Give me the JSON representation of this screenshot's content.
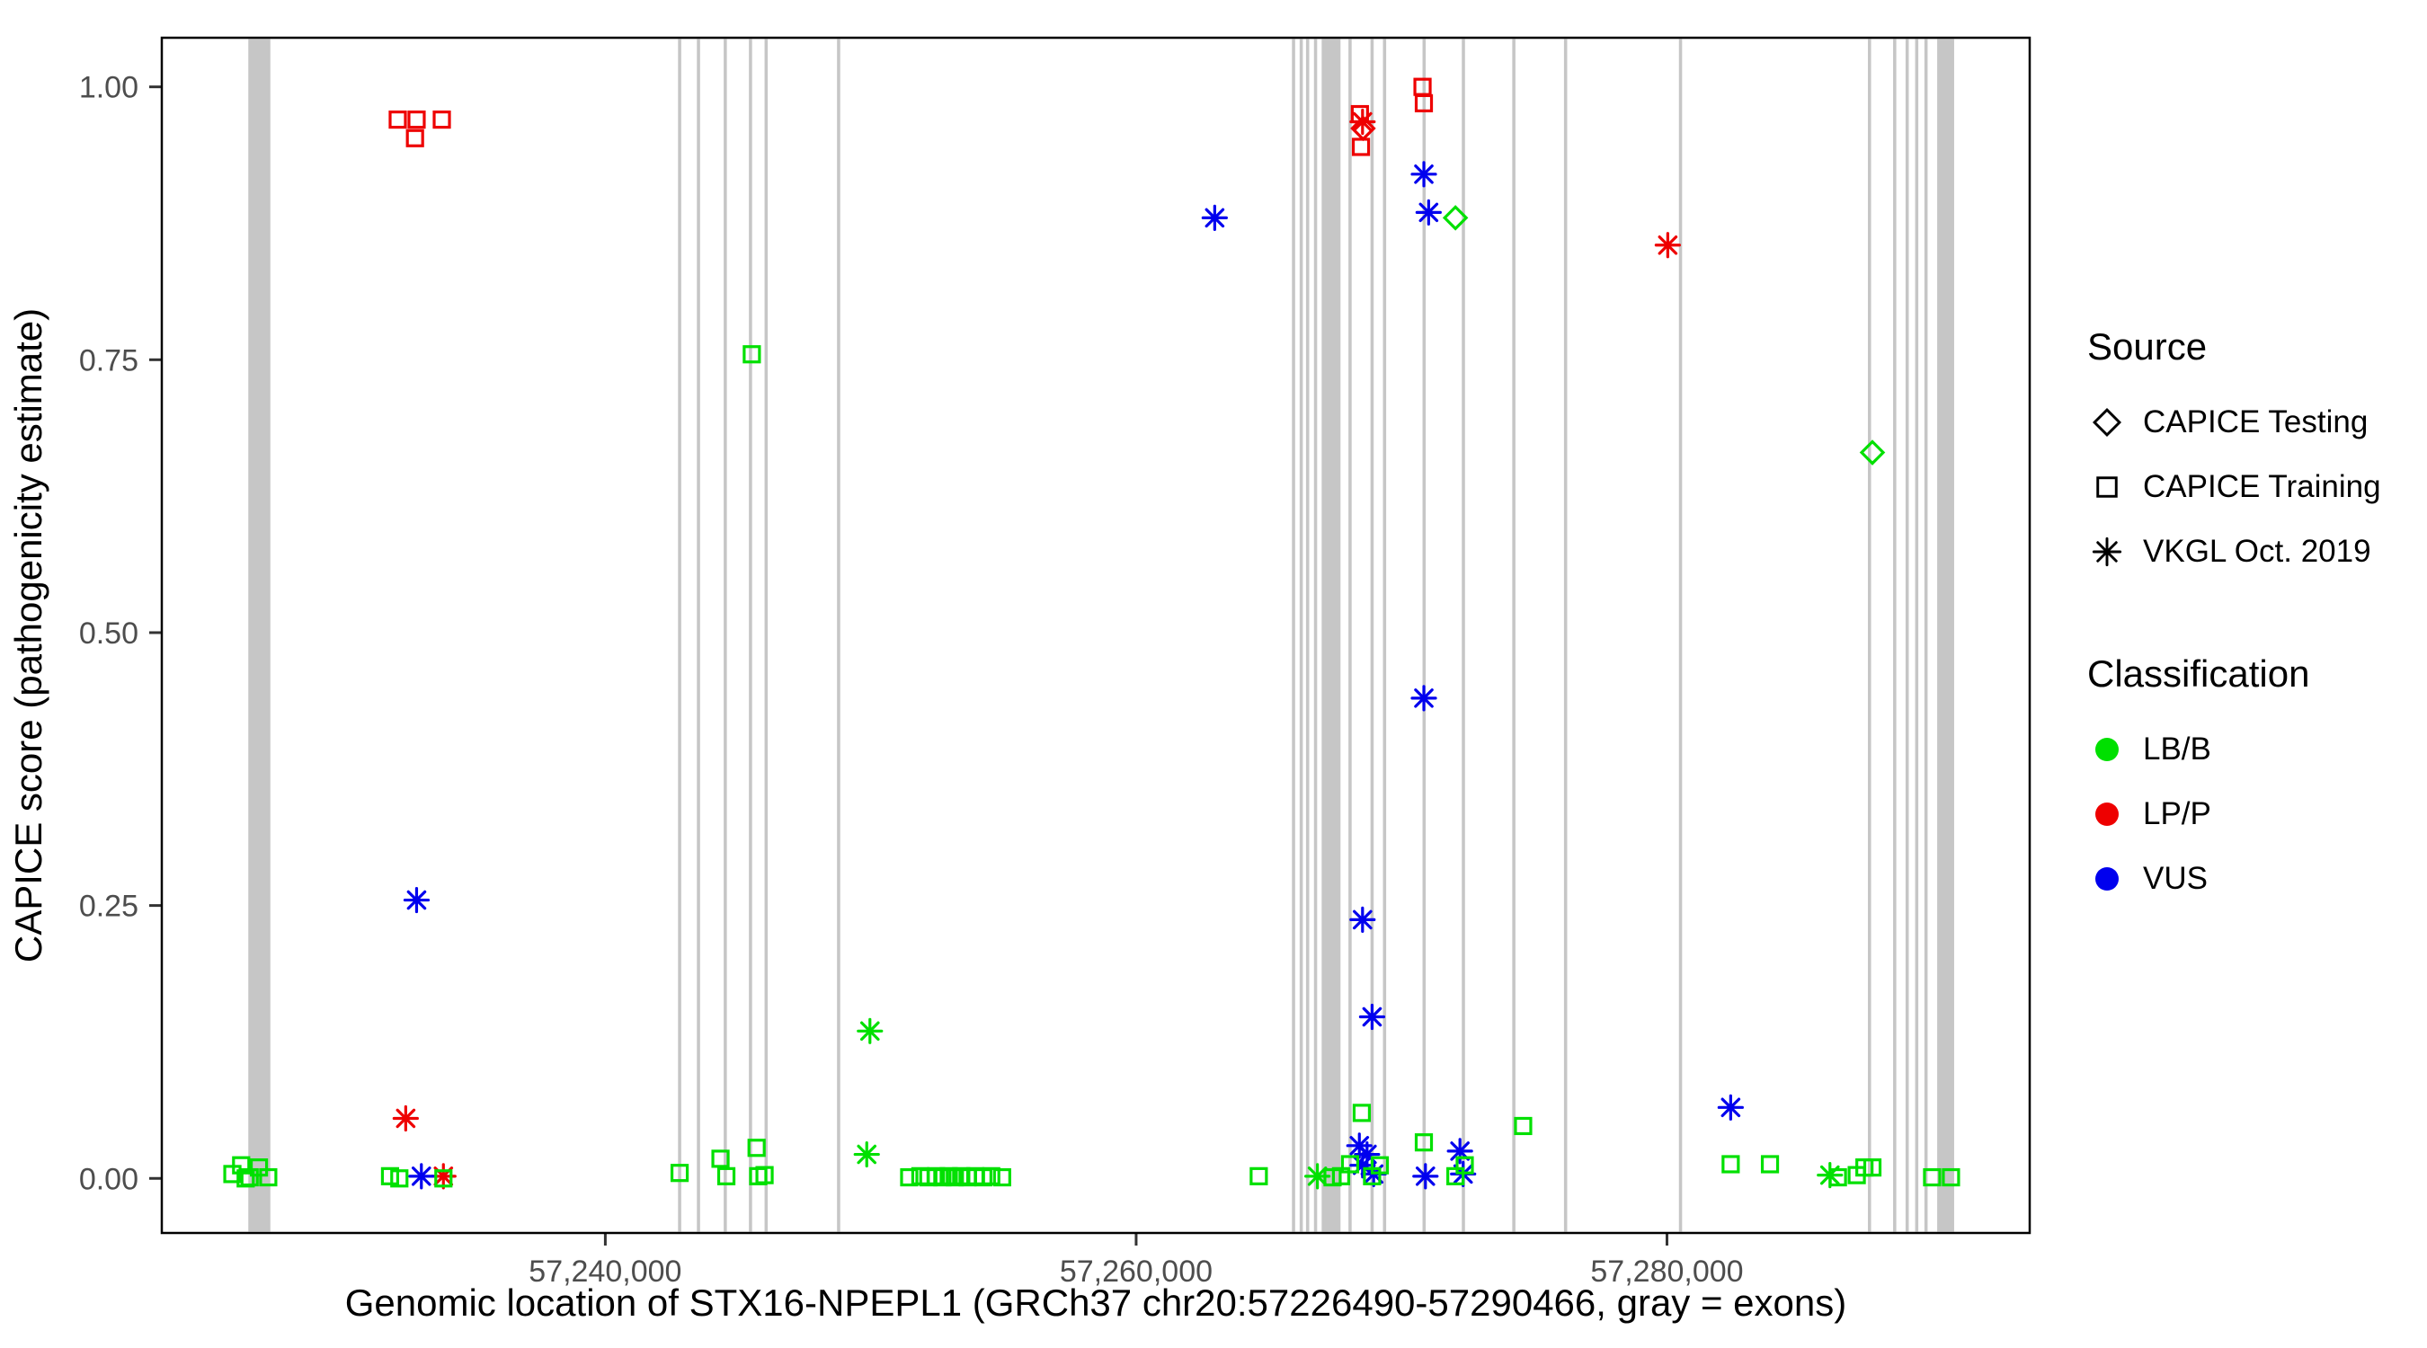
{
  "colors": {
    "exon": "#c6c6c6",
    "panel_border": "#000000",
    "tick": "#333333"
  },
  "legend": {
    "source": {
      "title": "Source",
      "items": [
        {
          "label": "CAPICE Testing",
          "icon": "diamond-icon"
        },
        {
          "label": "CAPICE Training",
          "icon": "square-icon"
        },
        {
          "label": "VKGL Oct. 2019",
          "icon": "asterisk-icon"
        }
      ]
    },
    "classification": {
      "title": "Classification",
      "items": [
        {
          "label": "LB/B",
          "color": "#00e000"
        },
        {
          "label": "LP/P",
          "color": "#ee0000"
        },
        {
          "label": "VUS",
          "color": "#0000ee"
        }
      ]
    }
  },
  "chart_data": {
    "type": "scatter",
    "title": "",
    "xlabel": "Genomic location of STX16-NPEPL1 (GRCh37 chr20:57226490-57290466, gray = exons)",
    "ylabel": "CAPICE score (pathogenicity estimate)",
    "xlim": [
      57223290,
      57293666
    ],
    "ylim": [
      -0.05,
      1.045
    ],
    "x_ticks": [
      {
        "value": 57240000,
        "label": "57,240,000"
      },
      {
        "value": 57260000,
        "label": "57,260,000"
      },
      {
        "value": 57280000,
        "label": "57,280,000"
      }
    ],
    "y_ticks": [
      {
        "value": 0.0,
        "label": "0.00"
      },
      {
        "value": 0.25,
        "label": "0.25"
      },
      {
        "value": 0.5,
        "label": "0.50"
      },
      {
        "value": 0.75,
        "label": "0.75"
      },
      {
        "value": 1.0,
        "label": "1.00"
      }
    ],
    "legend_note": "gray vertical bars = exons",
    "shapes": {
      "testing": "diamond",
      "training": "square",
      "vkgl": "asterisk"
    },
    "source_labels": {
      "testing": "CAPICE Testing",
      "training": "CAPICE Training",
      "vkgl": "VKGL Oct. 2019"
    },
    "class_colors": {
      "LB/B": "#00e000",
      "LP/P": "#ee0000",
      "VUS": "#0000ee"
    },
    "exons": [
      [
        57226550,
        57227380
      ],
      [
        57242740,
        57242860
      ],
      [
        57243450,
        57243570
      ],
      [
        57244460,
        57244580
      ],
      [
        57245410,
        57245530
      ],
      [
        57246000,
        57246120
      ],
      [
        57248730,
        57248850
      ],
      [
        57265870,
        57265990
      ],
      [
        57266160,
        57266280
      ],
      [
        57266400,
        57266520
      ],
      [
        57266700,
        57266820
      ],
      [
        57266990,
        57267700
      ],
      [
        57268000,
        57268120
      ],
      [
        57268830,
        57268950
      ],
      [
        57269300,
        57269420
      ],
      [
        57270790,
        57270910
      ],
      [
        57272270,
        57272390
      ],
      [
        57274170,
        57274290
      ],
      [
        57276120,
        57276240
      ],
      [
        57280450,
        57280570
      ],
      [
        57287570,
        57287690
      ],
      [
        57288520,
        57288640
      ],
      [
        57288990,
        57289110
      ],
      [
        57289350,
        57289470
      ],
      [
        57289700,
        57289820
      ],
      [
        57290180,
        57290820
      ]
    ],
    "points": [
      {
        "x": 57232180,
        "y": 0.97,
        "s": "training",
        "c": "LP/P"
      },
      {
        "x": 57232830,
        "y": 0.953,
        "s": "training",
        "c": "LP/P"
      },
      {
        "x": 57232890,
        "y": 0.97,
        "s": "training",
        "c": "LP/P"
      },
      {
        "x": 57233840,
        "y": 0.97,
        "s": "training",
        "c": "LP/P"
      },
      {
        "x": 57268430,
        "y": 0.975,
        "s": "training",
        "c": "LP/P"
      },
      {
        "x": 57268470,
        "y": 0.945,
        "s": "training",
        "c": "LP/P"
      },
      {
        "x": 57270790,
        "y": 1.0,
        "s": "training",
        "c": "LP/P"
      },
      {
        "x": 57270840,
        "y": 0.985,
        "s": "training",
        "c": "LP/P"
      },
      {
        "x": 57232480,
        "y": 0.055,
        "s": "vkgl",
        "c": "LP/P"
      },
      {
        "x": 57233900,
        "y": 0.002,
        "s": "vkgl",
        "c": "LP/P"
      },
      {
        "x": 57268530,
        "y": 0.968,
        "s": "vkgl",
        "c": "LP/P"
      },
      {
        "x": 57280030,
        "y": 0.855,
        "s": "vkgl",
        "c": "LP/P"
      },
      {
        "x": 57268550,
        "y": 0.962,
        "s": "testing",
        "c": "LP/P"
      },
      {
        "x": 57272030,
        "y": 0.88,
        "s": "testing",
        "c": "LB/B"
      },
      {
        "x": 57287740,
        "y": 0.665,
        "s": "testing",
        "c": "LB/B"
      },
      {
        "x": 57232890,
        "y": 0.255,
        "s": "vkgl",
        "c": "VUS"
      },
      {
        "x": 57233070,
        "y": 0.002,
        "s": "vkgl",
        "c": "VUS"
      },
      {
        "x": 57262960,
        "y": 0.88,
        "s": "vkgl",
        "c": "VUS"
      },
      {
        "x": 57268530,
        "y": 0.237,
        "s": "vkgl",
        "c": "VUS"
      },
      {
        "x": 57268890,
        "y": 0.148,
        "s": "vkgl",
        "c": "VUS"
      },
      {
        "x": 57270840,
        "y": 0.92,
        "s": "vkgl",
        "c": "VUS"
      },
      {
        "x": 57271020,
        "y": 0.885,
        "s": "vkgl",
        "c": "VUS"
      },
      {
        "x": 57270840,
        "y": 0.44,
        "s": "vkgl",
        "c": "VUS"
      },
      {
        "x": 57268410,
        "y": 0.03,
        "s": "vkgl",
        "c": "VUS"
      },
      {
        "x": 57268530,
        "y": 0.012,
        "s": "vkgl",
        "c": "VUS"
      },
      {
        "x": 57268700,
        "y": 0.022,
        "s": "vkgl",
        "c": "VUS"
      },
      {
        "x": 57268950,
        "y": 0.004,
        "s": "vkgl",
        "c": "VUS"
      },
      {
        "x": 57270900,
        "y": 0.002,
        "s": "vkgl",
        "c": "VUS"
      },
      {
        "x": 57272200,
        "y": 0.025,
        "s": "vkgl",
        "c": "VUS"
      },
      {
        "x": 57272320,
        "y": 0.004,
        "s": "vkgl",
        "c": "VUS"
      },
      {
        "x": 57282400,
        "y": 0.065,
        "s": "vkgl",
        "c": "VUS"
      },
      {
        "x": 57249970,
        "y": 0.135,
        "s": "vkgl",
        "c": "LB/B"
      },
      {
        "x": 57249850,
        "y": 0.022,
        "s": "vkgl",
        "c": "LB/B"
      },
      {
        "x": 57266830,
        "y": 0.002,
        "s": "vkgl",
        "c": "LB/B"
      },
      {
        "x": 57286140,
        "y": 0.003,
        "s": "vkgl",
        "c": "LB/B"
      },
      {
        "x": 57225950,
        "y": 0.004,
        "s": "training",
        "c": "LB/B"
      },
      {
        "x": 57226280,
        "y": 0.012,
        "s": "training",
        "c": "LB/B"
      },
      {
        "x": 57226600,
        "y": 0.001,
        "s": "training",
        "c": "LB/B"
      },
      {
        "x": 57226950,
        "y": 0.01,
        "s": "training",
        "c": "LB/B"
      },
      {
        "x": 57227300,
        "y": 0.001,
        "s": "training",
        "c": "LB/B"
      },
      {
        "x": 57226450,
        "y": 0.0,
        "s": "training",
        "c": "LB/B"
      },
      {
        "x": 57231890,
        "y": 0.002,
        "s": "training",
        "c": "LB/B"
      },
      {
        "x": 57232240,
        "y": 0.0,
        "s": "training",
        "c": "LB/B"
      },
      {
        "x": 57233900,
        "y": 0.0,
        "s": "training",
        "c": "LB/B"
      },
      {
        "x": 57242800,
        "y": 0.005,
        "s": "training",
        "c": "LB/B"
      },
      {
        "x": 57244340,
        "y": 0.018,
        "s": "training",
        "c": "LB/B"
      },
      {
        "x": 57244560,
        "y": 0.002,
        "s": "training",
        "c": "LB/B"
      },
      {
        "x": 57245520,
        "y": 0.755,
        "s": "training",
        "c": "LB/B"
      },
      {
        "x": 57245700,
        "y": 0.028,
        "s": "training",
        "c": "LB/B"
      },
      {
        "x": 57245760,
        "y": 0.002,
        "s": "training",
        "c": "LB/B"
      },
      {
        "x": 57246000,
        "y": 0.003,
        "s": "training",
        "c": "LB/B"
      },
      {
        "x": 57251450,
        "y": 0.001,
        "s": "training",
        "c": "LB/B"
      },
      {
        "x": 57251870,
        "y": 0.002,
        "s": "training",
        "c": "LB/B"
      },
      {
        "x": 57252170,
        "y": 0.001,
        "s": "training",
        "c": "LB/B"
      },
      {
        "x": 57252460,
        "y": 0.002,
        "s": "training",
        "c": "LB/B"
      },
      {
        "x": 57252700,
        "y": 0.001,
        "s": "training",
        "c": "LB/B"
      },
      {
        "x": 57252940,
        "y": 0.002,
        "s": "training",
        "c": "LB/B"
      },
      {
        "x": 57253170,
        "y": 0.001,
        "s": "training",
        "c": "LB/B"
      },
      {
        "x": 57253410,
        "y": 0.002,
        "s": "training",
        "c": "LB/B"
      },
      {
        "x": 57253650,
        "y": 0.001,
        "s": "training",
        "c": "LB/B"
      },
      {
        "x": 57253940,
        "y": 0.002,
        "s": "training",
        "c": "LB/B"
      },
      {
        "x": 57254240,
        "y": 0.001,
        "s": "training",
        "c": "LB/B"
      },
      {
        "x": 57254540,
        "y": 0.002,
        "s": "training",
        "c": "LB/B"
      },
      {
        "x": 57254950,
        "y": 0.001,
        "s": "training",
        "c": "LB/B"
      },
      {
        "x": 57264620,
        "y": 0.002,
        "s": "training",
        "c": "LB/B"
      },
      {
        "x": 57267400,
        "y": 0.001,
        "s": "training",
        "c": "LB/B"
      },
      {
        "x": 57267720,
        "y": 0.002,
        "s": "training",
        "c": "LB/B"
      },
      {
        "x": 57268060,
        "y": 0.013,
        "s": "training",
        "c": "LB/B"
      },
      {
        "x": 57268500,
        "y": 0.06,
        "s": "training",
        "c": "LB/B"
      },
      {
        "x": 57268890,
        "y": 0.002,
        "s": "training",
        "c": "LB/B"
      },
      {
        "x": 57269180,
        "y": 0.012,
        "s": "training",
        "c": "LB/B"
      },
      {
        "x": 57270840,
        "y": 0.033,
        "s": "training",
        "c": "LB/B"
      },
      {
        "x": 57272030,
        "y": 0.002,
        "s": "training",
        "c": "LB/B"
      },
      {
        "x": 57272380,
        "y": 0.012,
        "s": "training",
        "c": "LB/B"
      },
      {
        "x": 57274580,
        "y": 0.048,
        "s": "training",
        "c": "LB/B"
      },
      {
        "x": 57282400,
        "y": 0.013,
        "s": "training",
        "c": "LB/B"
      },
      {
        "x": 57283880,
        "y": 0.013,
        "s": "training",
        "c": "LB/B"
      },
      {
        "x": 57286440,
        "y": 0.001,
        "s": "training",
        "c": "LB/B"
      },
      {
        "x": 57287150,
        "y": 0.003,
        "s": "training",
        "c": "LB/B"
      },
      {
        "x": 57287440,
        "y": 0.01,
        "s": "training",
        "c": "LB/B"
      },
      {
        "x": 57287740,
        "y": 0.01,
        "s": "training",
        "c": "LB/B"
      },
      {
        "x": 57289990,
        "y": 0.001,
        "s": "training",
        "c": "LB/B"
      },
      {
        "x": 57290700,
        "y": 0.001,
        "s": "training",
        "c": "LB/B"
      }
    ]
  }
}
